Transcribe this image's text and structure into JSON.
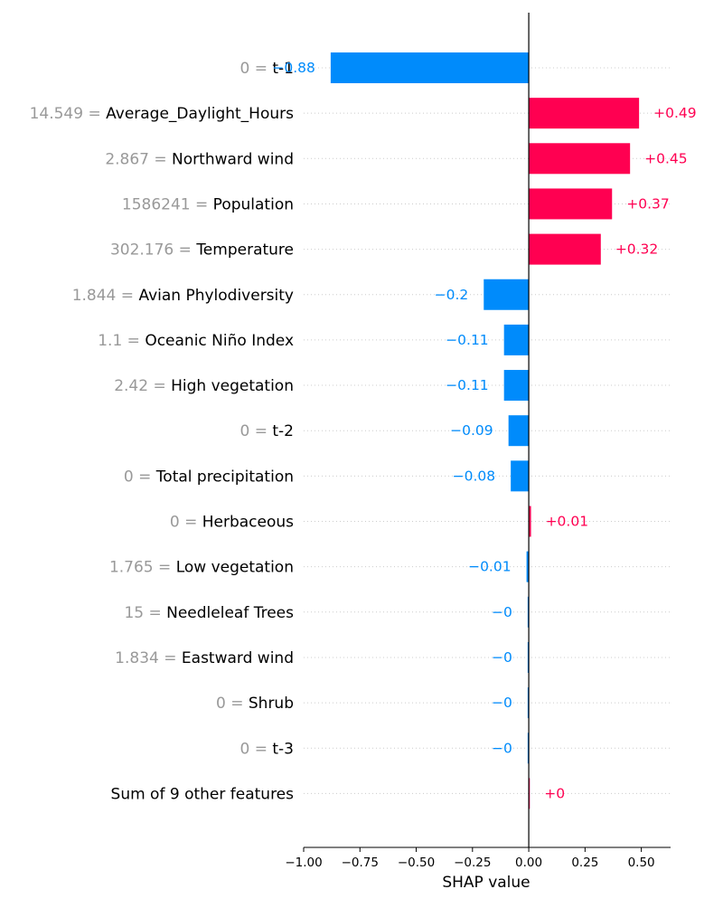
{
  "chart_data": {
    "type": "bar",
    "xlabel": "SHAP value",
    "xlim": [
      -1.0,
      0.63
    ],
    "x_ticks": [
      -1.0,
      -0.75,
      -0.5,
      -0.25,
      0.0,
      0.25,
      0.5
    ],
    "x_tick_labels": [
      "−1.00",
      "−0.75",
      "−0.50",
      "−0.25",
      "0.00",
      "0.25",
      "0.50"
    ],
    "grid": "horizontal-dotted",
    "colors": {
      "positive": "#ff0051",
      "negative": "#008bfb",
      "value_text": "#999999",
      "name_text": "#000000",
      "grid": "#cccccc",
      "axis": "#000000"
    },
    "features": [
      {
        "value_text": "0",
        "name": "t-1",
        "shap": -0.88,
        "label": "−0.88"
      },
      {
        "value_text": "14.549",
        "name": "Average_Daylight_Hours",
        "shap": 0.49,
        "label": "+0.49"
      },
      {
        "value_text": "2.867",
        "name": "Northward wind",
        "shap": 0.45,
        "label": "+0.45"
      },
      {
        "value_text": "1586241",
        "name": "Population",
        "shap": 0.37,
        "label": "+0.37"
      },
      {
        "value_text": "302.176",
        "name": "Temperature",
        "shap": 0.32,
        "label": "+0.32"
      },
      {
        "value_text": "1.844",
        "name": "Avian Phylodiversity",
        "shap": -0.2,
        "label": "−0.2"
      },
      {
        "value_text": "1.1",
        "name": "Oceanic Niño Index",
        "shap": -0.11,
        "label": "−0.11"
      },
      {
        "value_text": "2.42",
        "name": "High vegetation",
        "shap": -0.11,
        "label": "−0.11"
      },
      {
        "value_text": "0",
        "name": "t-2",
        "shap": -0.09,
        "label": "−0.09"
      },
      {
        "value_text": "0",
        "name": "Total precipitation",
        "shap": -0.08,
        "label": "−0.08"
      },
      {
        "value_text": "0",
        "name": "Herbaceous",
        "shap": 0.01,
        "label": "+0.01"
      },
      {
        "value_text": "1.765",
        "name": "Low vegetation",
        "shap": -0.01,
        "label": "−0.01"
      },
      {
        "value_text": "15",
        "name": "Needleleaf Trees",
        "shap": -0.002,
        "label": "−0"
      },
      {
        "value_text": "1.834",
        "name": "Eastward wind",
        "shap": -0.002,
        "label": "−0"
      },
      {
        "value_text": "0",
        "name": "Shrub",
        "shap": -0.002,
        "label": "−0"
      },
      {
        "value_text": "0",
        "name": "t-3",
        "shap": -0.002,
        "label": "−0"
      },
      {
        "value_text": "",
        "name": "Sum of 9 other features",
        "shap": 0.002,
        "label": "+0"
      }
    ]
  }
}
